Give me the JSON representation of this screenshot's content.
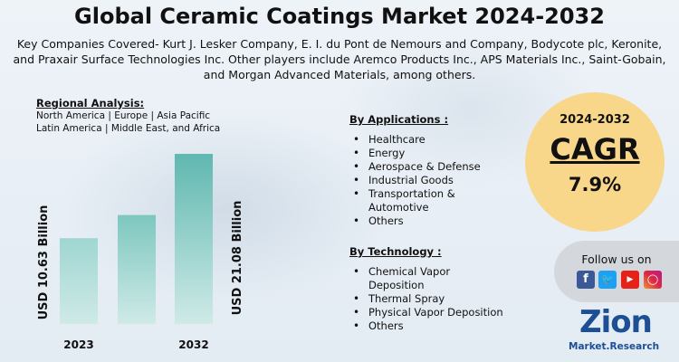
{
  "title": "Global Ceramic Coatings Market 2024-2032",
  "subtitle": "Key Companies Covered- Kurt J. Lesker Company, E. I. du Pont de Nemours and Company, Bodycote plc, Keronite, and Praxair Surface Technologies Inc. Other players include Aremco Products Inc., APS Materials Inc., Saint-Gobain, and Morgan Advanced Materials, among others.",
  "regional": {
    "heading": "Regional Analysis:",
    "line1": "North America | Europe | Asia Pacific",
    "line2": "Latin America | Middle East, and Africa"
  },
  "chart_data": {
    "type": "bar",
    "categories": [
      "2023",
      "",
      "2032"
    ],
    "values": [
      10.63,
      13.5,
      21.08
    ],
    "value_labels": [
      "USD 10.63 Billion",
      "",
      "USD 21.08 Billion"
    ],
    "title": "",
    "xlabel": "",
    "ylabel": "",
    "ylim": [
      0,
      24
    ],
    "grid": false,
    "colors": [
      "#9fd6d1",
      "#7dc7bf",
      "#5fb8b0"
    ]
  },
  "applications": {
    "heading": "By Applications :",
    "items": [
      "Healthcare",
      "Energy",
      "Aerospace & Defense",
      "Industrial Goods",
      "Transportation &",
      "Others"
    ],
    "item_cont": "Automotive"
  },
  "technology": {
    "heading": "By Technology :",
    "items": [
      "Chemical Vapor",
      "Thermal Spray",
      "Physical Vapor Deposition",
      "Others"
    ],
    "item_cont": "Deposition"
  },
  "cagr": {
    "years": "2024-2032",
    "label": "CAGR",
    "value": "7.9%",
    "circle_color": "#f8d68a"
  },
  "social": {
    "label": "Follow us on",
    "icons": [
      "facebook-icon",
      "twitter-icon",
      "youtube-icon",
      "instagram-icon"
    ]
  },
  "logo": {
    "main": "Zion",
    "sub": "Market.Research",
    "color": "#1d4f95"
  }
}
